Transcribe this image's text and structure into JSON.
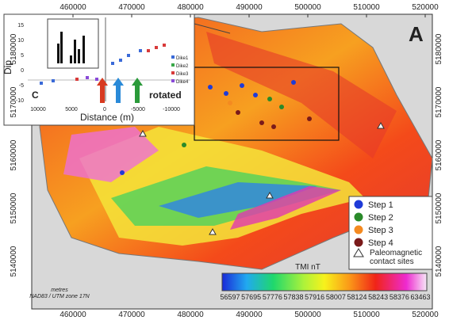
{
  "panel_label": "A",
  "x_ticks": [
    460000,
    470000,
    480000,
    490000,
    500000,
    510000,
    520000
  ],
  "y_ticks": [
    5180000,
    5170000,
    5160000,
    5150000,
    5140000
  ],
  "inset": {
    "label": "C",
    "y_label": "Dip",
    "x_label": "Distance (m)",
    "y_ticks": [
      15,
      10,
      5,
      0,
      -5,
      -10
    ],
    "x_ticks": [
      10000,
      5000,
      0,
      -5000,
      -10000
    ],
    "legend": [
      "Dike1",
      "Dike2",
      "Dike3",
      "Dike4"
    ],
    "annotation": "rotated"
  },
  "legend": {
    "items": [
      "Step 1",
      "Step 2",
      "Step 3",
      "Step 4"
    ],
    "sites": "Paleomagnetic contact sites"
  },
  "colorbar": {
    "title": "TMI nT",
    "ticks": [
      56597,
      57695,
      57776,
      57838,
      57916,
      58007,
      58124,
      58243,
      58376,
      63463
    ]
  },
  "projection": {
    "units": "metres",
    "datum": "NAD83 / UTM zone 17N"
  }
}
